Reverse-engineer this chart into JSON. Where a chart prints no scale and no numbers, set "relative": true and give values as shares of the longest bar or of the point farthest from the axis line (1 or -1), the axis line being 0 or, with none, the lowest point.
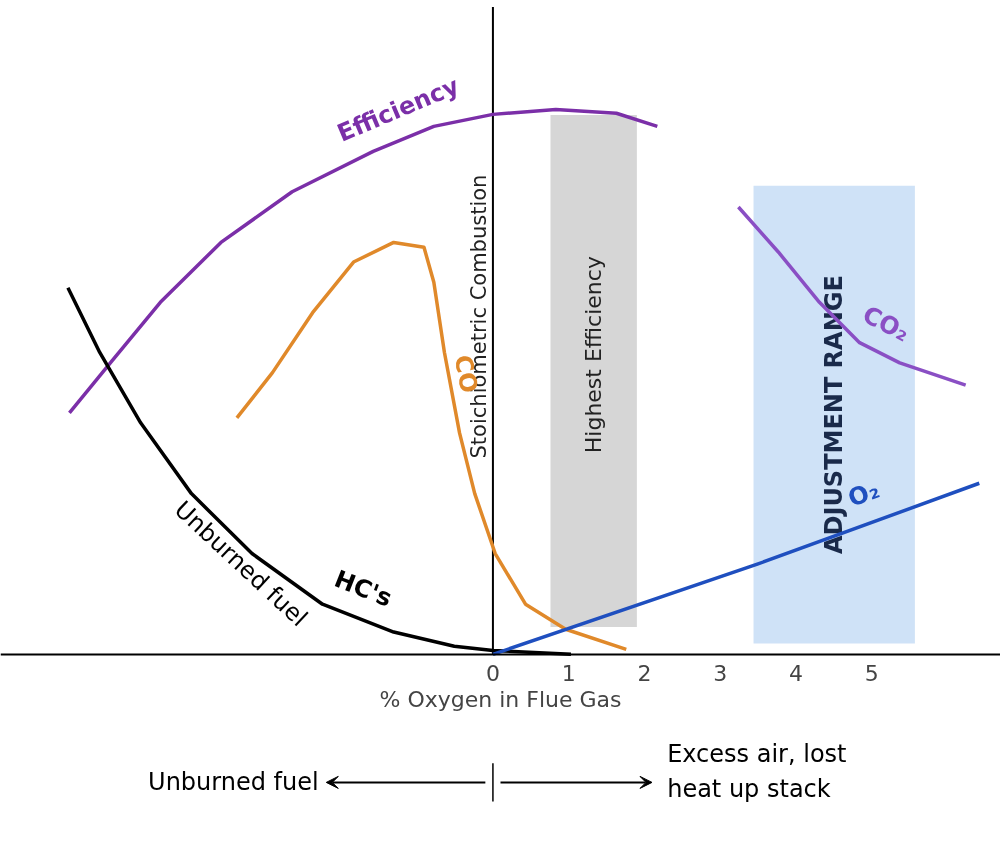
{
  "chart_data": {
    "type": "line",
    "relative": true,
    "xlabel": "% Oxygen in Flue Gas",
    "xlim": [
      -6.5,
      6.7
    ],
    "xticks": [
      0,
      1,
      2,
      3,
      4,
      5
    ],
    "tick_labels": "x",
    "grid": false,
    "series": [
      {
        "name": "Efficiency",
        "color": "#7b2fa8",
        "x": [
          -5.59,
          -5.05,
          -4.39,
          -3.59,
          -2.65,
          -1.58,
          -0.78,
          0,
          0.83,
          1.63,
          2.17
        ],
        "values": [
          0.443,
          0.535,
          0.646,
          0.756,
          0.849,
          0.923,
          0.969,
          0.991,
          1.0,
          0.993,
          0.969
        ]
      },
      {
        "name": "CO₂",
        "color": "#8a4fc4",
        "x": [
          3.24,
          3.77,
          4.31,
          4.84,
          5.37,
          6.24
        ],
        "values": [
          0.821,
          0.738,
          0.646,
          0.572,
          0.535,
          0.494
        ]
      },
      {
        "name": "CO",
        "color": "#e0892a",
        "x": [
          -3.38,
          -2.91,
          -2.38,
          -1.84,
          -1.31,
          -0.91,
          -0.78,
          -0.64,
          -0.44,
          -0.24,
          0.03,
          0.43,
          0.96,
          1.76
        ],
        "values": [
          0.434,
          0.517,
          0.627,
          0.72,
          0.756,
          0.747,
          0.683,
          0.554,
          0.406,
          0.295,
          0.185,
          0.092,
          0.046,
          0.009
        ]
      },
      {
        "name": "HC's",
        "color": "#000000",
        "x": [
          -5.61,
          -5.19,
          -4.65,
          -3.98,
          -3.18,
          -2.25,
          -1.31,
          -0.51,
          0,
          1.03
        ],
        "values": [
          0.673,
          0.554,
          0.425,
          0.295,
          0.185,
          0.092,
          0.041,
          0.015,
          0.007,
          0
        ]
      },
      {
        "name": "O₂",
        "color": "#1f4fbf",
        "x": [
          0,
          3.5,
          6.42
        ],
        "values": [
          0,
          0.166,
          0.314
        ]
      }
    ],
    "ref_lines": [
      {
        "axis": "x",
        "value": 0,
        "label": "Stoichiometric Combustion",
        "color": "#000000"
      }
    ],
    "bands": [
      {
        "axis": "x",
        "from": 0.76,
        "to": 1.9,
        "label": "Highest Efficiency",
        "color": "#d6d6d6"
      },
      {
        "axis": "x",
        "from": 3.44,
        "to": 5.57,
        "label": "ADJUSTMENT RANGE",
        "color": "#cfe2f7"
      }
    ],
    "annotations": [
      {
        "text": "Unburned fuel",
        "x": -3.2,
        "y": 0.185
      },
      "Unburned fuel",
      "Excess air, lost\nheat up stack"
    ]
  }
}
